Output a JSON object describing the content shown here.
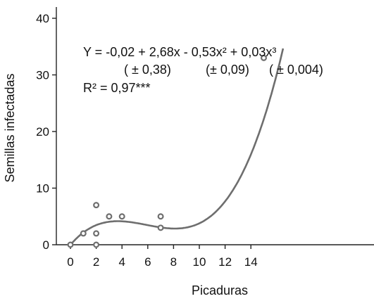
{
  "chart_data": {
    "type": "scatter",
    "xlabel": "Picaduras",
    "ylabel": "Semillas infectadas",
    "xlim": [
      -1,
      16
    ],
    "ylim": [
      0,
      42
    ],
    "x_ticks": [
      "0",
      "2",
      "4",
      "6",
      "8",
      "10",
      "12",
      "14"
    ],
    "y_ticks": [
      "0",
      "10",
      "20",
      "30",
      "40"
    ],
    "points": [
      {
        "x": 0,
        "y": 0
      },
      {
        "x": 1,
        "y": 2
      },
      {
        "x": 2,
        "y": 0
      },
      {
        "x": 2,
        "y": 2
      },
      {
        "x": 2,
        "y": 7
      },
      {
        "x": 3,
        "y": 5
      },
      {
        "x": 4,
        "y": 5
      },
      {
        "x": 7,
        "y": 5
      },
      {
        "x": 7,
        "y": 3
      },
      {
        "x": 15,
        "y": 33
      }
    ],
    "fit": {
      "coefficients": [
        -0.02,
        2.68,
        -0.53,
        0.03
      ],
      "equation": "Y = -0,02 + 2,68x - 0,53x² + 0,03x³",
      "errors": [
        "( ± 0,38)",
        "(± 0,09)",
        "( ± 0,004)"
      ],
      "r_squared": "R² = 0,97***"
    },
    "grid": false,
    "legend": "none"
  }
}
